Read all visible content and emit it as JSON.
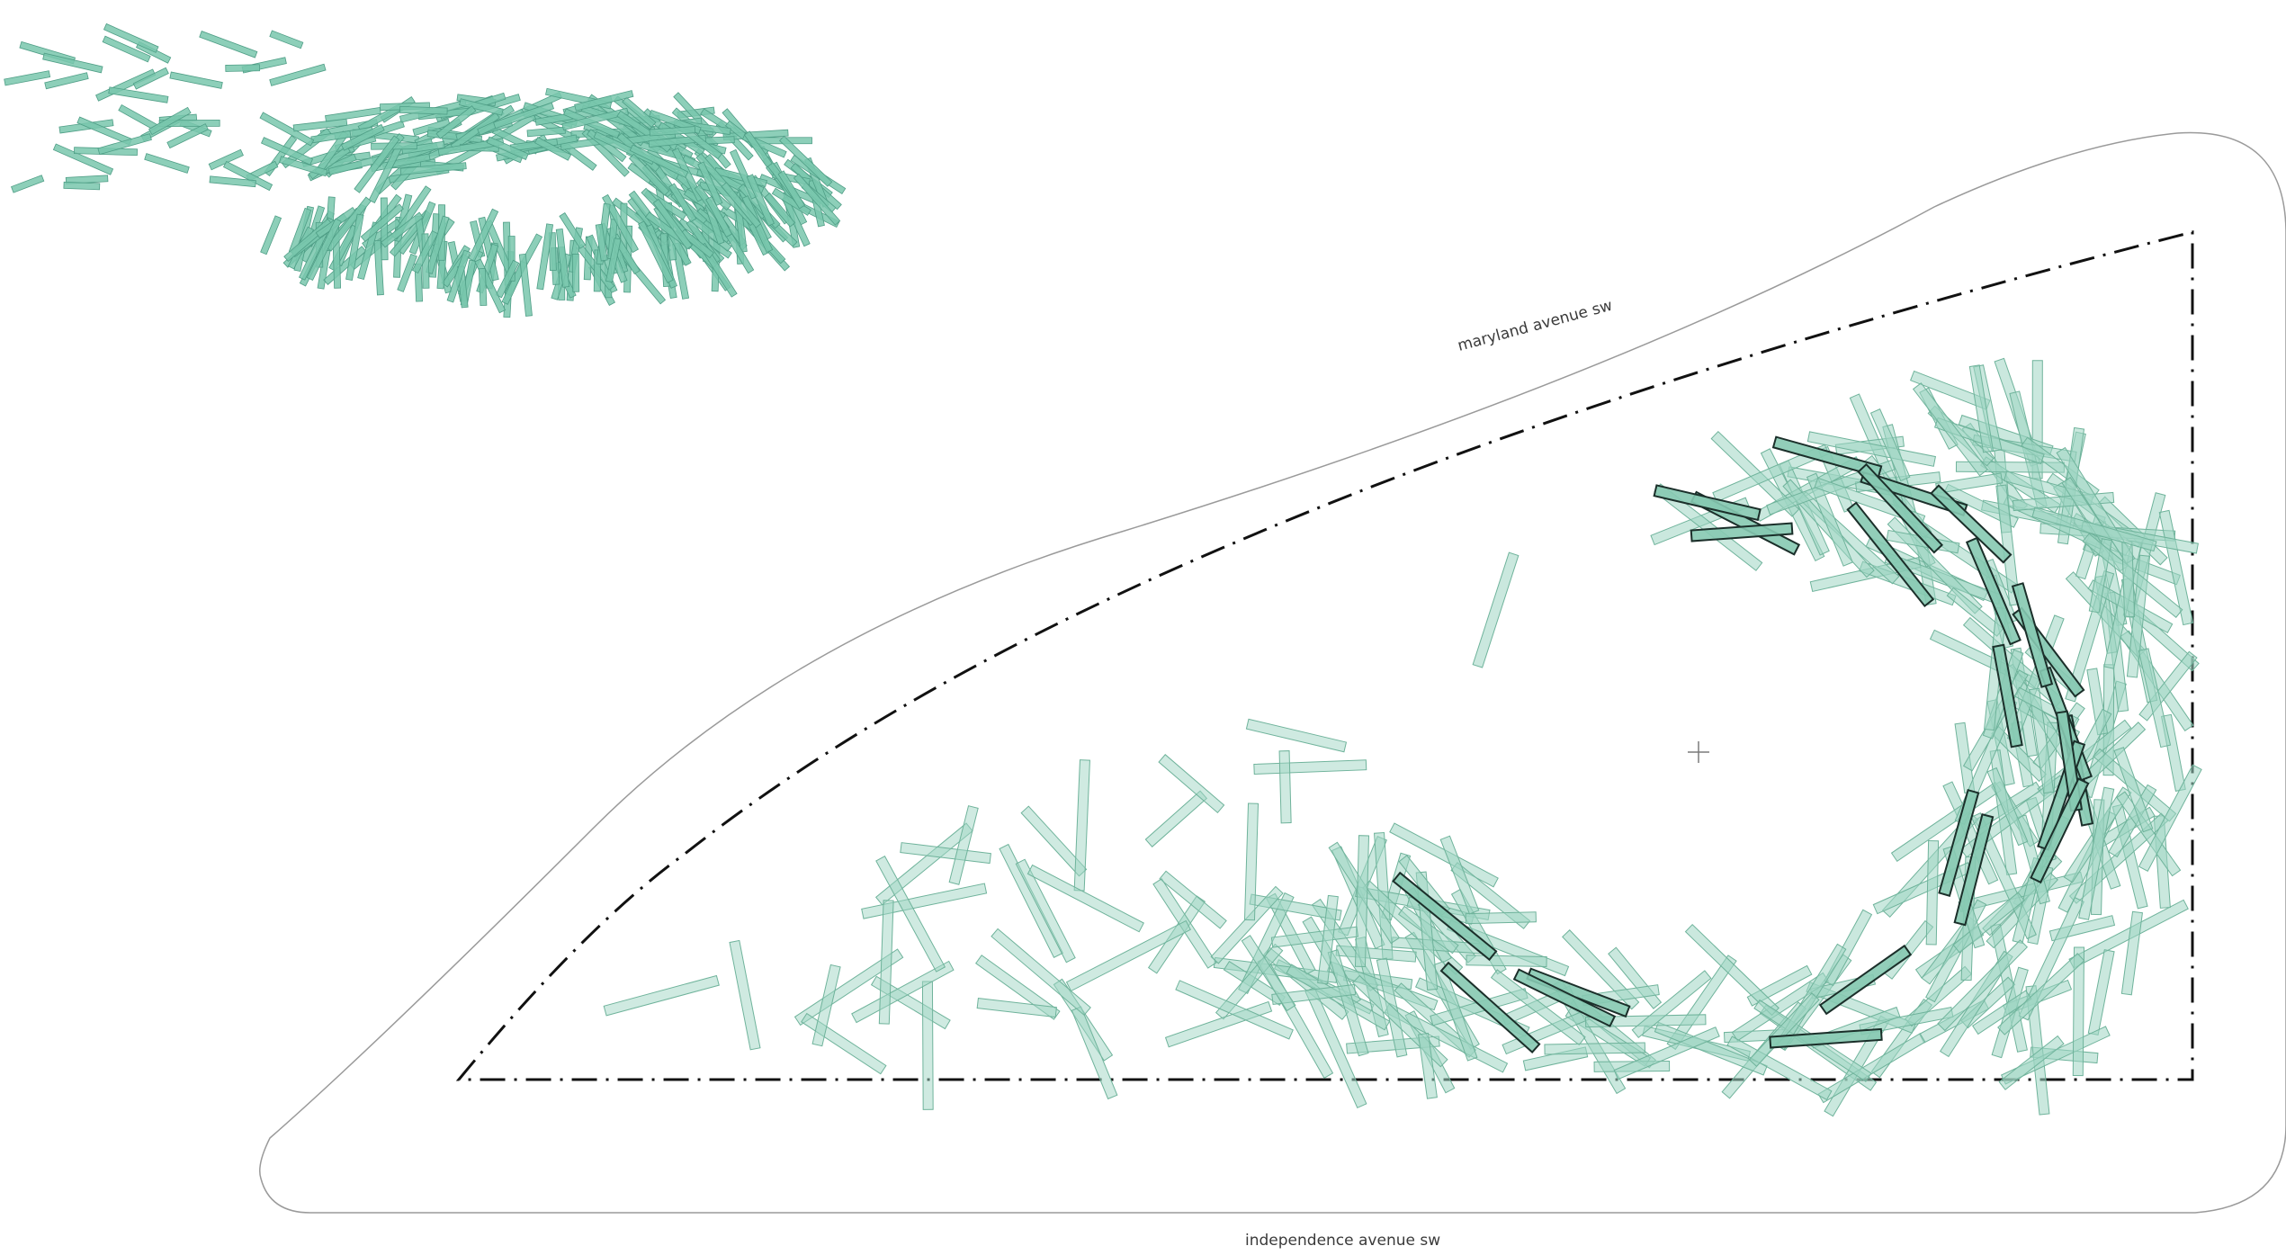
{
  "streets": {
    "north": "maryland avenue sw",
    "south": "independence avenue sw"
  },
  "palette": {
    "stick_fill": "#9fd6c3",
    "stick_stroke": "#6fb39b",
    "stick_dark_fill": "#86c9b1",
    "stick_dark_stroke": "#1b2f2a",
    "axo_fill": "#79c7ad",
    "axo_stroke": "#4f9e86",
    "boundary": "#111111",
    "outline": "#9a9a9a"
  },
  "icons": {
    "center_marker": "crosshair-icon"
  }
}
